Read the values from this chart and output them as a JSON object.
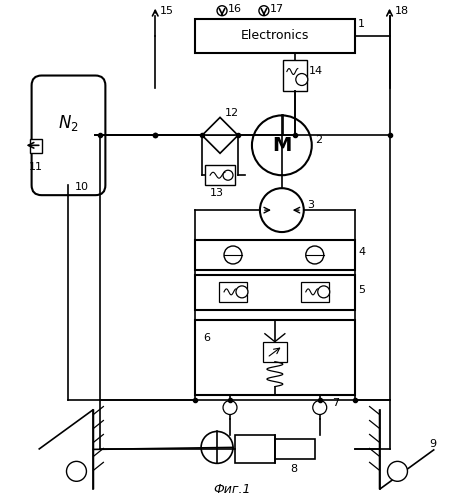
{
  "title": "Фиг.1",
  "background_color": "#ffffff",
  "line_color": "#000000",
  "figsize": [
    4.64,
    5.0
  ],
  "dpi": 100
}
